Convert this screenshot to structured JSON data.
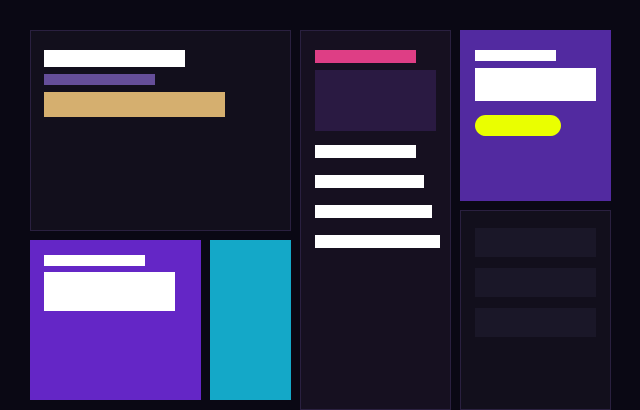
{
  "colors": {
    "background": "#0a0814",
    "panel_dark": "#120f1c",
    "panel_mid": "#161020",
    "accent_purple": "#6426c6",
    "accent_violet": "#522aa0",
    "accent_cyan": "#14a8c8",
    "accent_gold": "#d5af6f",
    "accent_pink": "#de3e85",
    "accent_lime": "#eaff00",
    "muted_purple": "#654e99",
    "placeholder_block": "#2a1a42",
    "list_row": "#1a1728"
  },
  "layout_note": "",
  "cards": {
    "hero": {
      "items": [
        "title-bar",
        "subtitle-bar",
        "highlight-bar"
      ]
    },
    "feature": {
      "items": [
        "label-bar",
        "content-block"
      ]
    },
    "list": {
      "count": 4
    },
    "promo": {
      "button": "pill-button"
    },
    "rows": {
      "count": 3
    }
  }
}
